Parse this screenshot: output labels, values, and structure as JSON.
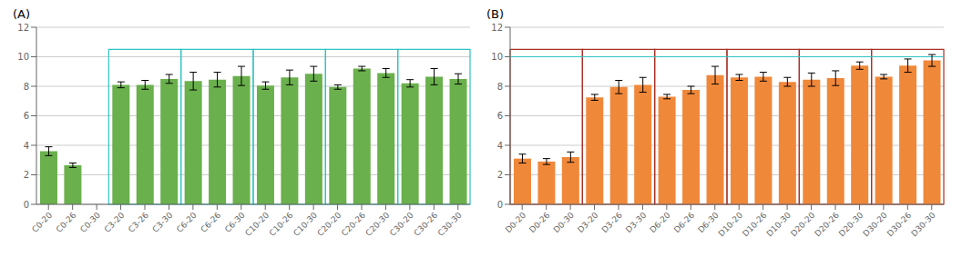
{
  "chart_data": [
    {
      "type": "bar",
      "title": "(A)",
      "categories": [
        "C0-20",
        "C0-26",
        "C0-30",
        "C3-20",
        "C3-26",
        "C3-30",
        "C6-20",
        "C6-26",
        "C6-30",
        "C10-20",
        "C10-26",
        "C10-30",
        "C20-20",
        "C20-26",
        "C20-30",
        "C30-20",
        "C30-26",
        "C30-30"
      ],
      "values": [
        3.6,
        2.65,
        null,
        8.1,
        8.1,
        8.5,
        8.35,
        8.45,
        8.7,
        8.05,
        8.6,
        8.85,
        7.95,
        9.2,
        8.9,
        8.2,
        8.65,
        8.5
      ],
      "errors": [
        0.3,
        0.15,
        null,
        0.2,
        0.3,
        0.3,
        0.6,
        0.5,
        0.65,
        0.25,
        0.5,
        0.5,
        0.15,
        0.15,
        0.3,
        0.25,
        0.55,
        0.35
      ],
      "color": "#6ab04c",
      "boxes": {
        "color": "#2ec4c4",
        "top": 10.5,
        "bottom": 0,
        "groups": [
          [
            "C3-20",
            "C3-30"
          ],
          [
            "C6-20",
            "C6-30"
          ],
          [
            "C10-20",
            "C10-30"
          ],
          [
            "C20-20",
            "C20-30"
          ],
          [
            "C30-20",
            "C30-30"
          ]
        ]
      },
      "ylim": [
        0,
        12
      ],
      "yticks": [
        0,
        2,
        4,
        6,
        8,
        10,
        12
      ],
      "grid": true
    },
    {
      "type": "bar",
      "title": "(B)",
      "categories": [
        "D0-20",
        "D0-26",
        "D0-30",
        "D3-20",
        "D3-26",
        "D3-30",
        "D6-20",
        "D6-26",
        "D6-30",
        "D10-20",
        "D10-26",
        "D10-30",
        "D20-20",
        "D20-26",
        "D20-30",
        "D30-20",
        "D30-26",
        "D30-30"
      ],
      "values": [
        3.1,
        2.9,
        3.2,
        7.25,
        7.95,
        8.1,
        7.3,
        7.75,
        8.75,
        8.6,
        8.65,
        8.3,
        8.45,
        8.55,
        9.4,
        8.65,
        9.4,
        9.75
      ],
      "errors": [
        0.3,
        0.2,
        0.35,
        0.2,
        0.45,
        0.5,
        0.15,
        0.25,
        0.6,
        0.2,
        0.3,
        0.3,
        0.45,
        0.5,
        0.25,
        0.15,
        0.45,
        0.4
      ],
      "color": "#f0883a",
      "boxes": {
        "color": "#a93226",
        "top": 10.5,
        "bottom": 0,
        "groups": [
          [
            "D0-20",
            "D0-30"
          ],
          [
            "D3-20",
            "D3-30"
          ],
          [
            "D6-20",
            "D6-30"
          ],
          [
            "D10-20",
            "D10-30"
          ],
          [
            "D20-20",
            "D20-30"
          ],
          [
            "D30-20",
            "D30-30"
          ]
        ]
      },
      "reference_line": {
        "y": 10,
        "color": "#2ec4c4"
      },
      "ylim": [
        0,
        12
      ],
      "yticks": [
        0,
        2,
        4,
        6,
        8,
        10,
        12
      ],
      "grid": true
    }
  ]
}
